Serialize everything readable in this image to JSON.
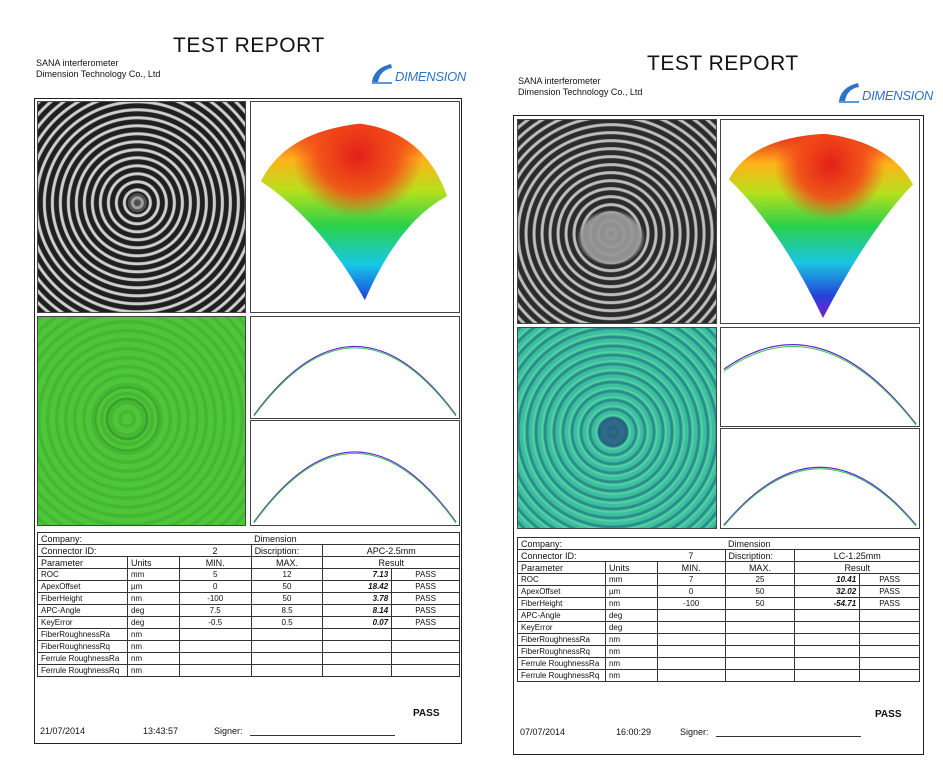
{
  "reports": [
    {
      "title": "TEST REPORT",
      "lab_line1": "SANA interferometer",
      "lab_line2": "Dimension Technology Co., Ltd",
      "logo_text": "DIMENSION",
      "company_label": "Company:",
      "company_value": "Dimension",
      "connector_label": "Connector ID:",
      "connector_value": "2",
      "description_label": "Discription:",
      "description_value": "APC-2.5mm",
      "headers": [
        "Parameter",
        "Units",
        "MIN.",
        "MAX.",
        "Result"
      ],
      "rows": [
        {
          "param": "ROC",
          "unit": "mm",
          "min": "5",
          "max": "12",
          "result": "7.13",
          "status": "PASS"
        },
        {
          "param": "ApexOffset",
          "unit": "µm",
          "min": "0",
          "max": "50",
          "result": "18.42",
          "status": "PASS"
        },
        {
          "param": "FiberHeight",
          "unit": "nm",
          "min": "-100",
          "max": "50",
          "result": "3.78",
          "status": "PASS"
        },
        {
          "param": "APC-Angle",
          "unit": "deg",
          "min": "7.5",
          "max": "8.5",
          "result": "8.14",
          "status": "PASS"
        },
        {
          "param": "KeyError",
          "unit": "deg",
          "min": "-0.5",
          "max": "0.5",
          "result": "0.07",
          "status": "PASS"
        },
        {
          "param": "FiberRoughnessRa",
          "unit": "nm",
          "min": "",
          "max": "",
          "result": "",
          "status": ""
        },
        {
          "param": "FiberRoughnessRq",
          "unit": "nm",
          "min": "",
          "max": "",
          "result": "",
          "status": ""
        },
        {
          "param": "Ferrule RoughnessRa",
          "unit": "nm",
          "min": "",
          "max": "",
          "result": "",
          "status": ""
        },
        {
          "param": "Ferrule RoughnessRq",
          "unit": "nm",
          "min": "",
          "max": "",
          "result": "",
          "status": ""
        }
      ],
      "overall": "PASS",
      "date": "21/07/2014",
      "time": "13:43:57",
      "signer_label": "Signer:"
    },
    {
      "title": "TEST REPORT",
      "lab_line1": "SANA interferometer",
      "lab_line2": "Dimension Technology Co., Ltd",
      "logo_text": "DIMENSION",
      "company_label": "Company:",
      "company_value": "Dimension",
      "connector_label": "Connector ID:",
      "connector_value": "7",
      "description_label": "Discription:",
      "description_value": "LC-1.25mm",
      "headers": [
        "Parameter",
        "Units",
        "MIN.",
        "MAX.",
        "Result"
      ],
      "rows": [
        {
          "param": "ROC",
          "unit": "mm",
          "min": "7",
          "max": "25",
          "result": "10.41",
          "status": "PASS"
        },
        {
          "param": "ApexOffset",
          "unit": "µm",
          "min": "0",
          "max": "50",
          "result": "32.02",
          "status": "PASS"
        },
        {
          "param": "FiberHeight",
          "unit": "nm",
          "min": "-100",
          "max": "50",
          "result": "-54.71",
          "status": "PASS"
        },
        {
          "param": "APC-Angle",
          "unit": "deg",
          "min": "",
          "max": "",
          "result": "",
          "status": ""
        },
        {
          "param": "KeyError",
          "unit": "deg",
          "min": "",
          "max": "",
          "result": "",
          "status": ""
        },
        {
          "param": "FiberRoughnessRa",
          "unit": "nm",
          "min": "",
          "max": "",
          "result": "",
          "status": ""
        },
        {
          "param": "FiberRoughnessRq",
          "unit": "nm",
          "min": "",
          "max": "",
          "result": "",
          "status": ""
        },
        {
          "param": "Ferrule RoughnessRa",
          "unit": "nm",
          "min": "",
          "max": "",
          "result": "",
          "status": ""
        },
        {
          "param": "Ferrule RoughnessRq",
          "unit": "nm",
          "min": "",
          "max": "",
          "result": "",
          "status": ""
        }
      ],
      "overall": "PASS",
      "date": "07/07/2014",
      "time": "16:00:29",
      "signer_label": "Signer:"
    }
  ]
}
